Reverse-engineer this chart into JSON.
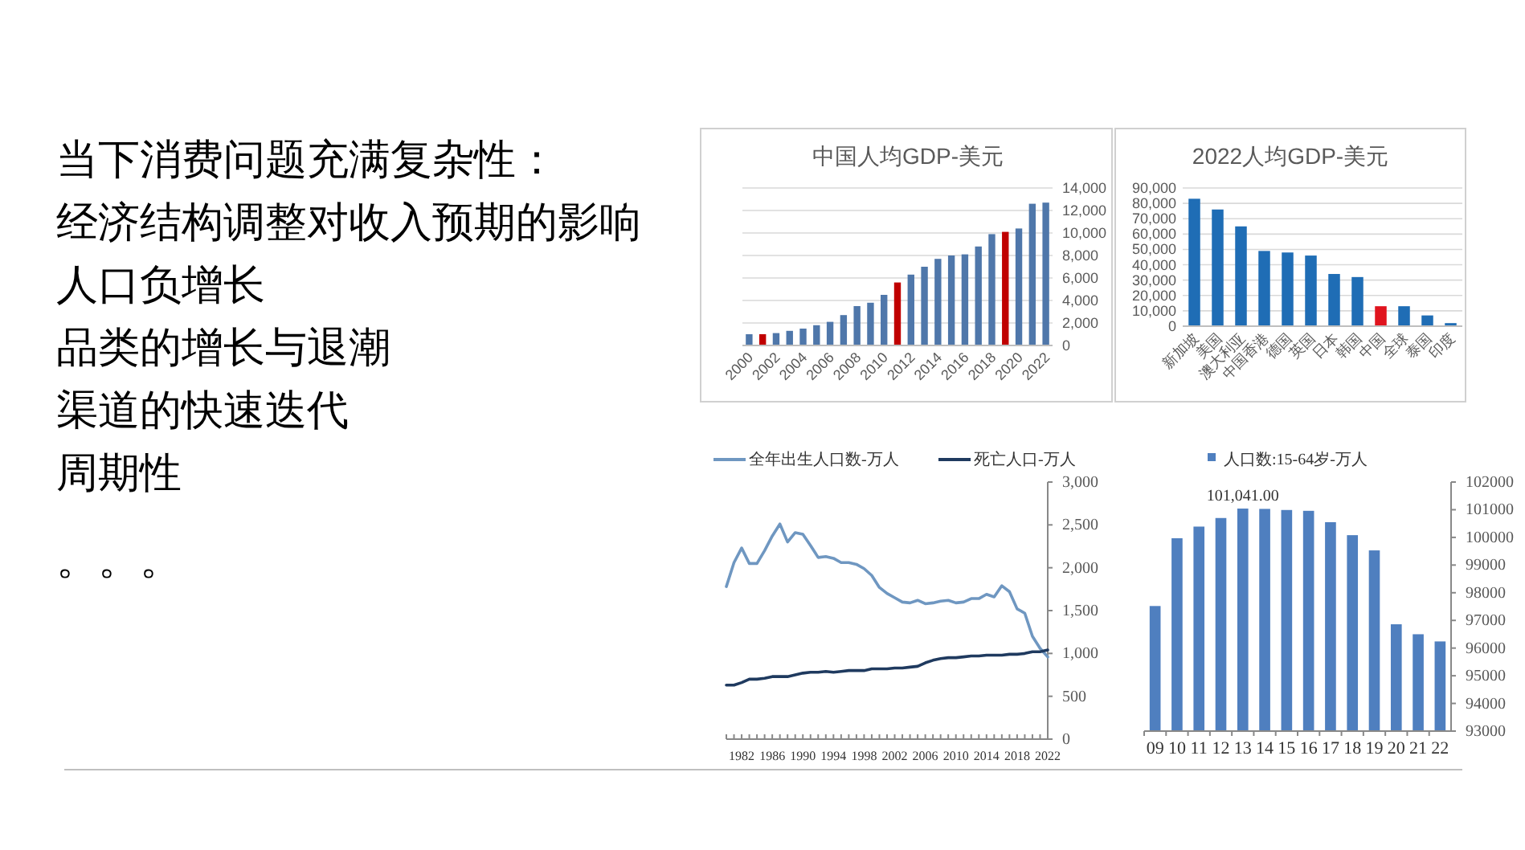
{
  "chart_data": [
    {
      "type": "other",
      "title": "当下消费问题充满复杂性：",
      "annotations": [
        "经济结构调整对收入预期的影响",
        "人口负增长",
        "品类的增长与退潮",
        "渠道的快速迭代",
        "周期性",
        "。。。"
      ]
    },
    {
      "type": "bar",
      "title": "中国人均GDP-美元",
      "categories": [
        "2000",
        null,
        "2002",
        null,
        "2004",
        null,
        "2006",
        null,
        "2008",
        null,
        "2010",
        null,
        "2012",
        null,
        "2014",
        null,
        "2016",
        null,
        "2018",
        null,
        "2020",
        null,
        "2022"
      ],
      "values": [
        1000,
        1000,
        1100,
        1300,
        1500,
        1800,
        2100,
        2700,
        3500,
        3800,
        4500,
        5600,
        6300,
        7000,
        7700,
        8000,
        8100,
        8800,
        9900,
        10100,
        10400,
        12600,
        12700
      ],
      "colors": [
        "#4f77aa",
        "#c00000",
        "#4f77aa",
        "#4f77aa",
        "#4f77aa",
        "#4f77aa",
        "#4f77aa",
        "#4f77aa",
        "#4f77aa",
        "#4f77aa",
        "#4f77aa",
        "#c00000",
        "#4f77aa",
        "#4f77aa",
        "#4f77aa",
        "#4f77aa",
        "#4f77aa",
        "#4f77aa",
        "#4f77aa",
        "#c00000",
        "#4f77aa",
        "#4f77aa",
        "#4f77aa"
      ],
      "ylim": [
        0,
        14000
      ],
      "yticks": [
        0,
        {
          "value": 2000,
          "label": "2,000"
        },
        {
          "value": 4000,
          "label": "4,000"
        },
        {
          "value": 6000,
          "label": "6,000"
        },
        {
          "value": 8000,
          "label": "8,000"
        },
        {
          "value": 10000,
          "label": "10,000"
        },
        {
          "value": 12000,
          "label": "12,000"
        },
        {
          "value": 14000,
          "label": "14,000"
        }
      ],
      "grid": "y"
    },
    {
      "type": "bar",
      "title": "2022人均GDP-美元",
      "categories": [
        "新加坡",
        "美国",
        "澳大利亚",
        "中国香港",
        "德国",
        "英国",
        "日本",
        "韩国",
        "中国",
        "全球",
        "泰国",
        "印度"
      ],
      "values": [
        83000,
        76000,
        65000,
        49000,
        48000,
        46000,
        34000,
        32000,
        13000,
        13000,
        7000,
        2000
      ],
      "colors": [
        "#1f6db5",
        "#1f6db5",
        "#1f6db5",
        "#1f6db5",
        "#1f6db5",
        "#1f6db5",
        "#1f6db5",
        "#1f6db5",
        "#e0141e",
        "#1f6db5",
        "#1f6db5",
        "#1f6db5"
      ],
      "ylim": [
        0,
        90000
      ],
      "yticks": [
        0,
        {
          "value": 10000,
          "label": "10,000"
        },
        {
          "value": 20000,
          "label": "20,000"
        },
        {
          "value": 30000,
          "label": "30,000"
        },
        {
          "value": 40000,
          "label": "40,000"
        },
        {
          "value": 50000,
          "label": "50,000"
        },
        {
          "value": 60000,
          "label": "60,000"
        },
        {
          "value": 70000,
          "label": "70,000"
        },
        {
          "value": 80000,
          "label": "80,000"
        },
        {
          "value": 90000,
          "label": "90,000"
        }
      ],
      "grid": "y"
    },
    {
      "type": "line",
      "x": [
        1980,
        1981,
        1982,
        1983,
        1984,
        1985,
        1986,
        1987,
        1988,
        1989,
        1990,
        1991,
        1992,
        1993,
        1994,
        1995,
        1996,
        1997,
        1998,
        1999,
        2000,
        2001,
        2002,
        2003,
        2004,
        2005,
        2006,
        2007,
        2008,
        2009,
        2010,
        2011,
        2012,
        2013,
        2014,
        2015,
        2016,
        2017,
        2018,
        2019,
        2020,
        2021,
        2022
      ],
      "series": [
        {
          "name": "全年出生人口数-万人",
          "color": "#6f97c1",
          "values": [
            1780,
            2060,
            2230,
            2050,
            2050,
            2200,
            2370,
            2510,
            2300,
            2410,
            2390,
            2260,
            2120,
            2130,
            2110,
            2060,
            2060,
            2040,
            1990,
            1910,
            1770,
            1700,
            1650,
            1600,
            1590,
            1620,
            1580,
            1590,
            1610,
            1620,
            1590,
            1600,
            1640,
            1640,
            1690,
            1660,
            1790,
            1720,
            1520,
            1470,
            1200,
            1060,
            960
          ]
        },
        {
          "name": "死亡人口-万人",
          "color": "#1f3a5f",
          "values": [
            630,
            630,
            660,
            700,
            700,
            710,
            730,
            730,
            730,
            750,
            770,
            780,
            780,
            790,
            780,
            790,
            800,
            800,
            800,
            820,
            820,
            820,
            830,
            830,
            840,
            850,
            890,
            920,
            940,
            950,
            950,
            960,
            970,
            970,
            980,
            980,
            980,
            990,
            990,
            1000,
            1020,
            1020,
            1040
          ]
        }
      ],
      "xlim": [
        1980,
        2022
      ],
      "xticks": [
        {
          "value": 1980,
          "label": null
        },
        {
          "value": 1981,
          "label": null
        },
        1982,
        {
          "value": 1983,
          "label": null
        },
        {
          "value": 1984,
          "label": null
        },
        {
          "value": 1985,
          "label": null
        },
        1986,
        {
          "value": 1987,
          "label": null
        },
        {
          "value": 1988,
          "label": null
        },
        {
          "value": 1989,
          "label": null
        },
        1990,
        {
          "value": 1991,
          "label": null
        },
        {
          "value": 1992,
          "label": null
        },
        {
          "value": 1993,
          "label": null
        },
        1994,
        {
          "value": 1995,
          "label": null
        },
        {
          "value": 1996,
          "label": null
        },
        {
          "value": 1997,
          "label": null
        },
        1998,
        {
          "value": 1999,
          "label": null
        },
        {
          "value": 2000,
          "label": null
        },
        {
          "value": 2001,
          "label": null
        },
        2002,
        {
          "value": 2003,
          "label": null
        },
        {
          "value": 2004,
          "label": null
        },
        {
          "value": 2005,
          "label": null
        },
        2006,
        {
          "value": 2007,
          "label": null
        },
        {
          "value": 2008,
          "label": null
        },
        {
          "value": 2009,
          "label": null
        },
        2010,
        {
          "value": 2011,
          "label": null
        },
        {
          "value": 2012,
          "label": null
        },
        {
          "value": 2013,
          "label": null
        },
        2014,
        {
          "value": 2015,
          "label": null
        },
        {
          "value": 2016,
          "label": null
        },
        {
          "value": 2017,
          "label": null
        },
        2018,
        {
          "value": 2019,
          "label": null
        },
        {
          "value": 2020,
          "label": null
        },
        {
          "value": 2021,
          "label": null
        },
        2022
      ],
      "ylim": [
        0,
        3000
      ],
      "yticks": [
        0,
        500,
        {
          "value": 1000,
          "label": "1,000"
        },
        {
          "value": 1500,
          "label": "1,500"
        },
        {
          "value": 2000,
          "label": "2,000"
        },
        {
          "value": 2500,
          "label": "2,500"
        },
        {
          "value": 3000,
          "label": "3,000"
        }
      ],
      "legend": "top"
    },
    {
      "type": "bar",
      "categories": [
        "09",
        "10",
        "11",
        "12",
        "13",
        "14",
        "15",
        "16",
        "17",
        "18",
        "19",
        "20",
        "21",
        "22"
      ],
      "series": [
        {
          "name": "人口数:15-64岁-万人",
          "color": "#4f7fbf",
          "values": [
            97520,
            99970,
            100390,
            100700,
            101041,
            101030,
            100990,
            100960,
            100550,
            100080,
            99530,
            96860,
            96500,
            96240
          ],
          "value_labels": [
            null,
            null,
            null,
            null,
            "101,041.00",
            null,
            null,
            null,
            null,
            null,
            null,
            null,
            null,
            null
          ]
        }
      ],
      "ylim": [
        93000,
        102000
      ],
      "yticks": [
        93000,
        94000,
        95000,
        96000,
        97000,
        98000,
        99000,
        100000,
        101000,
        102000
      ],
      "legend": "top"
    }
  ]
}
